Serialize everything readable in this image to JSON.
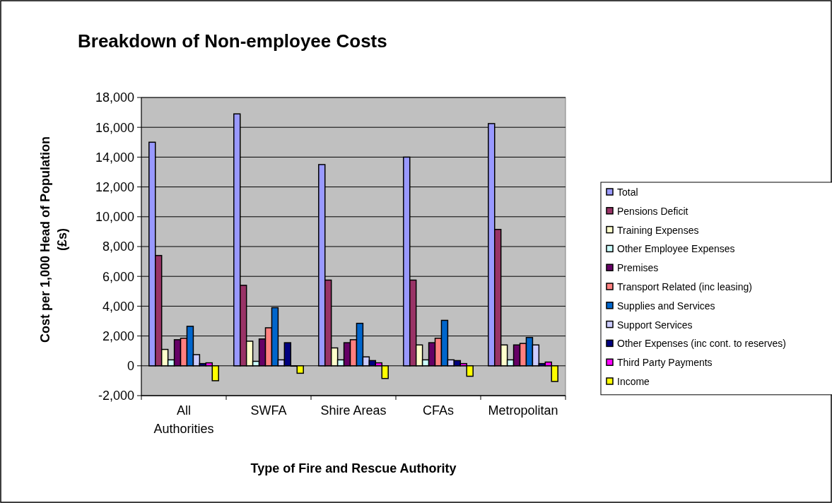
{
  "chart_data": {
    "type": "bar",
    "title": "Breakdown of Non-employee Costs",
    "xlabel": "Type of Fire and Rescue Authority",
    "ylabel": "Cost per 1,000 Head of Population (£s)",
    "categories": [
      "All Authorities",
      "SWFA",
      "Shire Areas",
      "CFAs",
      "Metropolitan"
    ],
    "series": [
      {
        "name": "Total",
        "color": "#9999ff",
        "values": [
          15000,
          16900,
          13500,
          14000,
          16250
        ]
      },
      {
        "name": "Pensions Deficit",
        "color": "#993366",
        "values": [
          7400,
          5400,
          5750,
          5750,
          9150
        ]
      },
      {
        "name": "Training Expenses",
        "color": "#ffffcc",
        "values": [
          1100,
          1650,
          1200,
          1400,
          1400
        ]
      },
      {
        "name": "Other Employee Expenses",
        "color": "#ccffff",
        "values": [
          400,
          300,
          400,
          400,
          400
        ]
      },
      {
        "name": "Premises",
        "color": "#660066",
        "values": [
          1750,
          1800,
          1550,
          1550,
          1400
        ]
      },
      {
        "name": "Transport Related (inc leasing)",
        "color": "#ff8080",
        "values": [
          1850,
          2550,
          1750,
          1850,
          1500
        ]
      },
      {
        "name": "Supplies and Services",
        "color": "#0066cc",
        "values": [
          2650,
          3900,
          2850,
          3050,
          1900
        ]
      },
      {
        "name": "Support Services",
        "color": "#ccccff",
        "values": [
          750,
          400,
          600,
          400,
          1400
        ]
      },
      {
        "name": "Other Expenses (inc cont. to reserves)",
        "color": "#000080",
        "values": [
          150,
          1550,
          350,
          350,
          150
        ]
      },
      {
        "name": "Third Party Payments",
        "color": "#ff00ff",
        "values": [
          200,
          0,
          200,
          150,
          250
        ]
      },
      {
        "name": "Income",
        "color": "#ffff00",
        "values": [
          -1000,
          -500,
          -850,
          -700,
          -1050
        ]
      }
    ],
    "ylim": [
      -2000,
      18000
    ],
    "yticks": [
      {
        "value": -2000,
        "label": "-2,000"
      },
      0,
      {
        "value": 2000,
        "label": "2,000"
      },
      {
        "value": 4000,
        "label": "4,000"
      },
      {
        "value": 6000,
        "label": "6,000"
      },
      {
        "value": 8000,
        "label": "8,000"
      },
      {
        "value": 10000,
        "label": "10,000"
      },
      {
        "value": 12000,
        "label": "12,000"
      },
      {
        "value": 14000,
        "label": "14,000"
      },
      {
        "value": 16000,
        "label": "16,000"
      },
      {
        "value": 18000,
        "label": "18,000"
      }
    ],
    "grid": "y",
    "legend": "right"
  }
}
